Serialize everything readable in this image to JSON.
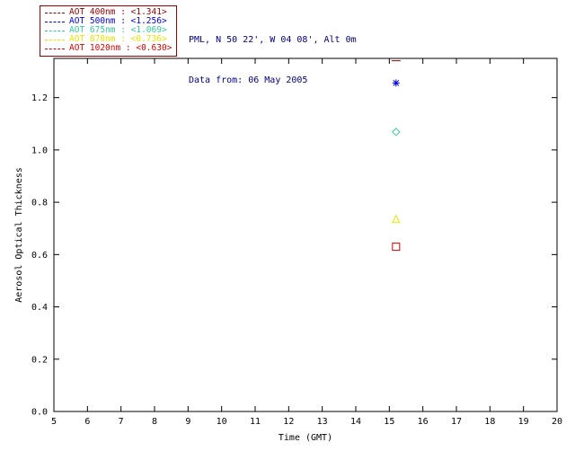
{
  "header": {
    "line1": "PML, N 50 22', W 04 08', Alt 0m",
    "line2": "Data from: 06 May 2005",
    "color": "#000080"
  },
  "legend": {
    "border_color": "#990000",
    "items": [
      {
        "label": "AOT  400nm : <1.341>",
        "color": "#990000",
        "marker": "dash"
      },
      {
        "label": "AOT  500nm : <1.256>",
        "color": "#0000EE",
        "marker": "asterisk"
      },
      {
        "label": "AOT  675nm : <1.069>",
        "color": "#33CC99",
        "marker": "diamond"
      },
      {
        "label": "AOT  870nm : <0.736>",
        "color": "#E6E600",
        "marker": "triangle"
      },
      {
        "label": "AOT 1020nm : <0.630>",
        "color": "#DD0000",
        "marker": "square"
      }
    ]
  },
  "chart_data": {
    "type": "scatter",
    "title": "",
    "xlabel": "Time (GMT)",
    "ylabel": "Aerosol Optical Thickness",
    "xlim": [
      5,
      20
    ],
    "ylim": [
      0.0,
      1.35
    ],
    "x_ticks": [
      5,
      6,
      7,
      8,
      9,
      10,
      11,
      12,
      13,
      14,
      15,
      16,
      17,
      18,
      19,
      20
    ],
    "y_ticks": [
      0.0,
      0.2,
      0.4,
      0.6,
      0.8,
      1.0,
      1.2
    ],
    "grid": false,
    "legend_position": "top-left",
    "series": [
      {
        "name": "AOT 400nm",
        "x": [
          15.2
        ],
        "y": [
          1.341
        ],
        "color": "#990000",
        "marker": "dash"
      },
      {
        "name": "AOT 500nm",
        "x": [
          15.2
        ],
        "y": [
          1.256
        ],
        "color": "#0000EE",
        "marker": "asterisk"
      },
      {
        "name": "AOT 675nm",
        "x": [
          15.2
        ],
        "y": [
          1.069
        ],
        "color": "#33CC99",
        "marker": "diamond"
      },
      {
        "name": "AOT 870nm",
        "x": [
          15.2
        ],
        "y": [
          0.736
        ],
        "color": "#E6E600",
        "marker": "triangle"
      },
      {
        "name": "AOT 1020nm",
        "x": [
          15.2
        ],
        "y": [
          0.63
        ],
        "color": "#DD0000",
        "marker": "square"
      }
    ]
  }
}
